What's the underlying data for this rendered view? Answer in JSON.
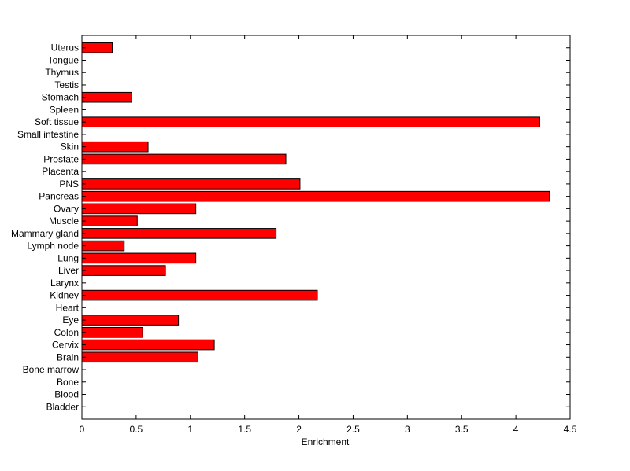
{
  "chart_data": {
    "type": "bar",
    "orientation": "horizontal",
    "title": "",
    "xlabel": "Enrichment",
    "ylabel": "",
    "xlim": [
      0,
      4.5
    ],
    "xticks": [
      "0",
      "0.5",
      "1",
      "1.5",
      "2",
      "2.5",
      "3",
      "3.5",
      "4",
      "4.5"
    ],
    "grid": false,
    "bar_color": "#ff0000",
    "bar_edge_color": "#000000",
    "categories": [
      "Bladder",
      "Blood",
      "Bone",
      "Bone marrow",
      "Brain",
      "Cervix",
      "Colon",
      "Eye",
      "Heart",
      "Kidney",
      "Larynx",
      "Liver",
      "Lung",
      "Lymph node",
      "Mammary gland",
      "Muscle",
      "Ovary",
      "Pancreas",
      "PNS",
      "Placenta",
      "Prostate",
      "Skin",
      "Small intestine",
      "Soft tissue",
      "Spleen",
      "Stomach",
      "Testis",
      "Thymus",
      "Tongue",
      "Uterus"
    ],
    "values": [
      0,
      0,
      0,
      0,
      1.07,
      1.22,
      0.56,
      0.89,
      0,
      2.17,
      0,
      0.77,
      1.05,
      0.39,
      1.79,
      0.51,
      1.05,
      4.31,
      2.01,
      0,
      1.88,
      0.61,
      0,
      4.22,
      0,
      0.46,
      0,
      0,
      0,
      0.28
    ]
  }
}
